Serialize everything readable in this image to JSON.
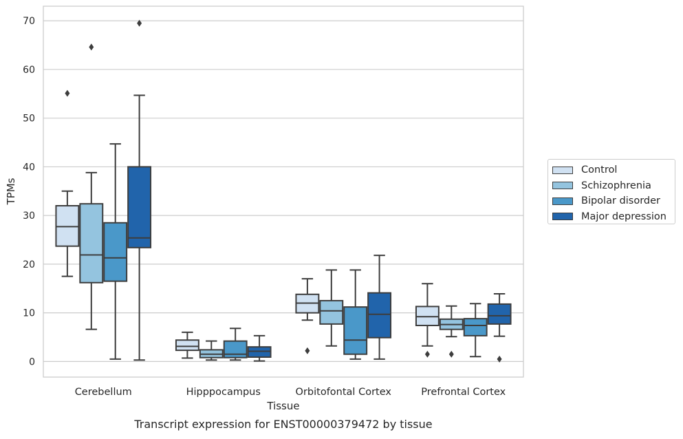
{
  "chart_data": {
    "type": "boxplot",
    "title": "Transcript expression for ENST00000379472 by tissue",
    "xlabel": "Tissue",
    "ylabel": "TPMs",
    "ylim": [
      -3.2,
      73
    ],
    "yticks": [
      0,
      10,
      20,
      30,
      40,
      50,
      60,
      70
    ],
    "grid": true,
    "legend_position": "right",
    "categories": [
      "Cerebellum",
      "Hipppocampus",
      "Orbitofontal Cortex",
      "Prefrontal Cortex"
    ],
    "series": [
      {
        "name": "Control",
        "color": "#d0e1f2",
        "boxes": [
          {
            "whisker_low": 17.5,
            "q1": 23.7,
            "median": 27.7,
            "q3": 32.0,
            "whisker_high": 35.0,
            "outliers": [
              55.1
            ]
          },
          {
            "whisker_low": 0.7,
            "q1": 2.3,
            "median": 3.1,
            "q3": 4.4,
            "whisker_high": 6.0,
            "outliers": []
          },
          {
            "whisker_low": 8.5,
            "q1": 10.0,
            "median": 12.0,
            "q3": 13.8,
            "whisker_high": 17.0,
            "outliers": [
              2.2
            ]
          },
          {
            "whisker_low": 3.2,
            "q1": 7.4,
            "median": 9.2,
            "q3": 11.3,
            "whisker_high": 16.0,
            "outliers": [
              1.5
            ]
          }
        ]
      },
      {
        "name": "Schizophrenia",
        "color": "#94c4df",
        "boxes": [
          {
            "whisker_low": 6.6,
            "q1": 16.2,
            "median": 21.9,
            "q3": 32.4,
            "whisker_high": 38.8,
            "outliers": [
              64.6
            ]
          },
          {
            "whisker_low": 0.3,
            "q1": 0.8,
            "median": 1.5,
            "q3": 2.4,
            "whisker_high": 4.2,
            "outliers": []
          },
          {
            "whisker_low": 3.2,
            "q1": 7.7,
            "median": 10.4,
            "q3": 12.5,
            "whisker_high": 18.8,
            "outliers": []
          },
          {
            "whisker_low": 5.1,
            "q1": 6.6,
            "median": 7.6,
            "q3": 8.7,
            "whisker_high": 11.4,
            "outliers": [
              1.5
            ]
          }
        ]
      },
      {
        "name": "Bipolar disorder",
        "color": "#4a98c9",
        "boxes": [
          {
            "whisker_low": 0.5,
            "q1": 16.5,
            "median": 21.3,
            "q3": 28.5,
            "whisker_high": 44.7,
            "outliers": []
          },
          {
            "whisker_low": 0.3,
            "q1": 0.8,
            "median": 1.5,
            "q3": 4.2,
            "whisker_high": 6.8,
            "outliers": []
          },
          {
            "whisker_low": 0.5,
            "q1": 1.5,
            "median": 4.4,
            "q3": 11.2,
            "whisker_high": 18.8,
            "outliers": []
          },
          {
            "whisker_low": 1.0,
            "q1": 5.3,
            "median": 7.4,
            "q3": 8.8,
            "whisker_high": 11.9,
            "outliers": []
          }
        ]
      },
      {
        "name": "Major depression",
        "color": "#2164ab",
        "boxes": [
          {
            "whisker_low": 0.3,
            "q1": 23.4,
            "median": 25.4,
            "q3": 40.0,
            "whisker_high": 54.7,
            "outliers": [
              69.5
            ]
          },
          {
            "whisker_low": 0.1,
            "q1": 0.9,
            "median": 2.1,
            "q3": 3.0,
            "whisker_high": 5.3,
            "outliers": []
          },
          {
            "whisker_low": 0.5,
            "q1": 4.9,
            "median": 9.7,
            "q3": 14.1,
            "whisker_high": 21.8,
            "outliers": []
          },
          {
            "whisker_low": 5.2,
            "q1": 7.7,
            "median": 9.4,
            "q3": 11.8,
            "whisker_high": 13.9,
            "outliers": [
              0.5
            ]
          }
        ]
      }
    ]
  }
}
